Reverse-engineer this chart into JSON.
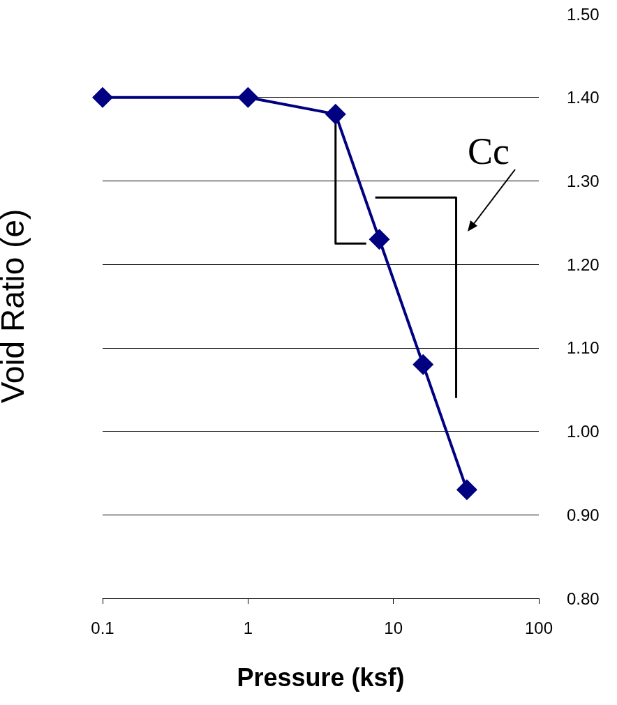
{
  "chart_data": {
    "type": "line",
    "xlabel": "Pressure (ksf)",
    "ylabel": "Void Ratio (e)",
    "x": [
      0.1,
      1,
      4,
      8,
      16,
      32
    ],
    "series": [
      {
        "color": "#000080",
        "values": [
          1.4,
          1.4,
          1.38,
          1.23,
          1.08,
          0.93
        ]
      },
      {
        "type": "line",
        "color": "#000000",
        "marker": "none",
        "x": [
          4,
          4,
          6.5
        ],
        "values": [
          1.37,
          1.225,
          1.225
        ]
      },
      {
        "type": "line",
        "color": "#000000",
        "marker": "none",
        "x": [
          7.5,
          27,
          27
        ],
        "values": [
          1.28,
          1.28,
          1.04
        ]
      }
    ],
    "log": "x",
    "xlim": [
      0.1,
      100
    ],
    "xticks": [
      0.1,
      1,
      10,
      100
    ],
    "ylim": [
      0.8,
      1.5
    ],
    "yticks": [
      {
        "value": 0.8,
        "label": "0.80"
      },
      {
        "value": 0.9,
        "label": "0.90"
      },
      {
        "value": 1.0,
        "label": "1.00"
      },
      {
        "value": 1.1,
        "label": "1.10"
      },
      {
        "value": 1.2,
        "label": "1.20"
      },
      {
        "value": 1.3,
        "label": "1.30"
      },
      {
        "value": 1.4,
        "label": "1.40"
      },
      {
        "value": 1.5,
        "label": "1.50"
      }
    ],
    "grid": "y",
    "marker": "diamond",
    "line_style": "solid",
    "annotations": [
      "Cc"
    ]
  }
}
